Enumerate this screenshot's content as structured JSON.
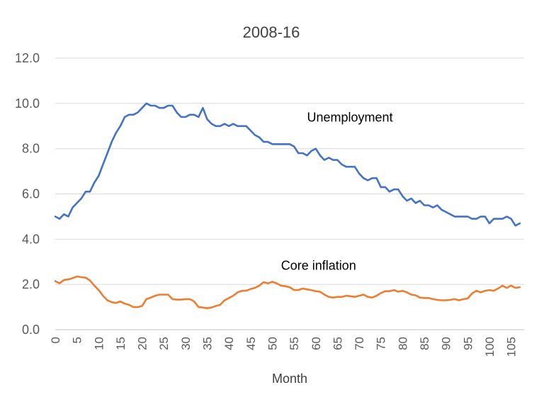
{
  "chart_data": {
    "type": "line",
    "title": "2008-16",
    "xlabel": "Month",
    "ylabel": "",
    "xlim": [
      0,
      108
    ],
    "ylim": [
      0,
      12
    ],
    "yticks": [
      "0.0",
      "2.0",
      "4.0",
      "6.0",
      "8.0",
      "10.0",
      "12.0"
    ],
    "xticks": [
      "0",
      "5",
      "10",
      "15",
      "20",
      "25",
      "30",
      "35",
      "40",
      "45",
      "50",
      "55",
      "60",
      "65",
      "70",
      "75",
      "80",
      "85",
      "90",
      "95",
      "100",
      "105"
    ],
    "grid": "horizontal",
    "series": [
      {
        "name": "Unemployment",
        "color": "#4472c4",
        "values": [
          5.0,
          4.9,
          5.1,
          5.0,
          5.4,
          5.6,
          5.8,
          6.1,
          6.1,
          6.5,
          6.8,
          7.3,
          7.8,
          8.3,
          8.7,
          9.0,
          9.4,
          9.5,
          9.5,
          9.6,
          9.8,
          10.0,
          9.9,
          9.9,
          9.8,
          9.8,
          9.9,
          9.9,
          9.6,
          9.4,
          9.4,
          9.5,
          9.5,
          9.4,
          9.8,
          9.3,
          9.1,
          9.0,
          9.0,
          9.1,
          9.0,
          9.1,
          9.0,
          9.0,
          9.0,
          8.8,
          8.6,
          8.5,
          8.3,
          8.3,
          8.2,
          8.2,
          8.2,
          8.2,
          8.2,
          8.1,
          7.8,
          7.8,
          7.7,
          7.9,
          8.0,
          7.7,
          7.5,
          7.6,
          7.5,
          7.5,
          7.3,
          7.2,
          7.2,
          7.2,
          6.9,
          6.7,
          6.6,
          6.7,
          6.7,
          6.3,
          6.3,
          6.1,
          6.2,
          6.2,
          5.9,
          5.7,
          5.8,
          5.6,
          5.7,
          5.5,
          5.5,
          5.4,
          5.5,
          5.3,
          5.2,
          5.1,
          5.0,
          5.0,
          5.0,
          5.0,
          4.9,
          4.9,
          5.0,
          5.0,
          4.7,
          4.9,
          4.9,
          4.9,
          5.0,
          4.9,
          4.6,
          4.7
        ]
      },
      {
        "name": "Core inflation",
        "color": "#ed7d31",
        "values": [
          2.15,
          2.05,
          2.2,
          2.22,
          2.28,
          2.35,
          2.32,
          2.3,
          2.18,
          1.95,
          1.75,
          1.5,
          1.3,
          1.22,
          1.18,
          1.25,
          1.15,
          1.1,
          1.0,
          1.0,
          1.05,
          1.35,
          1.42,
          1.5,
          1.55,
          1.55,
          1.55,
          1.35,
          1.33,
          1.33,
          1.35,
          1.35,
          1.25,
          1.0,
          0.98,
          0.95,
          0.98,
          1.05,
          1.1,
          1.3,
          1.4,
          1.5,
          1.65,
          1.72,
          1.72,
          1.8,
          1.85,
          1.95,
          2.1,
          2.05,
          2.12,
          2.05,
          1.95,
          1.92,
          1.88,
          1.75,
          1.75,
          1.82,
          1.78,
          1.75,
          1.7,
          1.68,
          1.55,
          1.45,
          1.42,
          1.45,
          1.45,
          1.5,
          1.48,
          1.45,
          1.5,
          1.55,
          1.45,
          1.42,
          1.5,
          1.62,
          1.7,
          1.7,
          1.75,
          1.68,
          1.72,
          1.65,
          1.55,
          1.52,
          1.42,
          1.4,
          1.4,
          1.35,
          1.32,
          1.3,
          1.3,
          1.32,
          1.35,
          1.3,
          1.35,
          1.38,
          1.6,
          1.72,
          1.65,
          1.72,
          1.75,
          1.72,
          1.82,
          1.95,
          1.85,
          1.95,
          1.85,
          1.88
        ]
      }
    ],
    "annotations": [
      {
        "text": "Unemployment",
        "x": 58,
        "y": 9.2
      },
      {
        "text": "Core inflation",
        "x": 52,
        "y": 2.65
      }
    ]
  }
}
